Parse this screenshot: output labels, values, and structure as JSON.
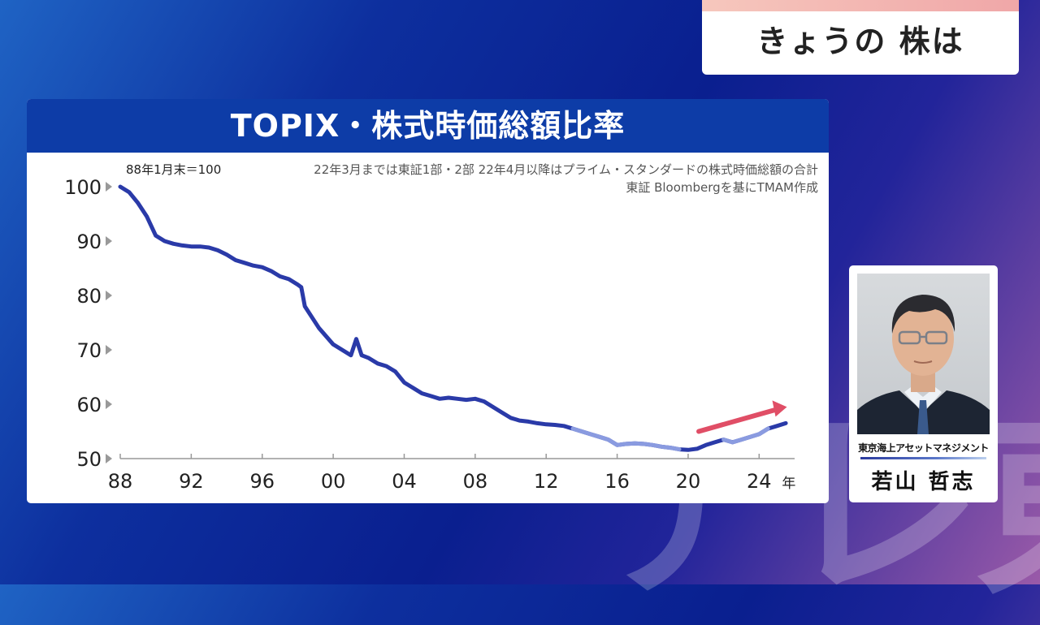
{
  "watermark": {
    "text": "テレ東"
  },
  "topic": {
    "title": "きょうの 株は"
  },
  "guest": {
    "company": "東京海上アセットマネジメント",
    "name": "若山 哲志"
  },
  "chart_data": {
    "type": "line",
    "title": "TOPIX・株式時価総額比率",
    "base_note": "88年1月末＝100",
    "note_line1": "22年3月までは東証1部・2部 22年4月以降はプライム・スタンダードの株式時価総額の合計",
    "note_line2": "東証 Bloombergを基にTMAM作成",
    "x_ticks": [
      "88",
      "92",
      "96",
      "00",
      "04",
      "08",
      "12",
      "16",
      "20",
      "24"
    ],
    "x_unit": "年",
    "y_ticks": [
      100,
      90,
      80,
      70,
      60,
      50
    ],
    "xlim": [
      1988,
      2026
    ],
    "ylim": [
      50,
      100
    ],
    "series_color": "#2a3aa8",
    "highlight_color": "#8a9be0",
    "arrow_color": "#e04e66",
    "highlight_ranges": [
      [
        2013.5,
        2019.5
      ],
      [
        2022.0,
        2024.5
      ]
    ],
    "x": [
      1988.0,
      1988.5,
      1989.0,
      1989.5,
      1990.0,
      1990.5,
      1991.0,
      1991.5,
      1992.0,
      1992.5,
      1993.0,
      1993.5,
      1994.0,
      1994.5,
      1995.0,
      1995.5,
      1996.0,
      1996.5,
      1997.0,
      1997.5,
      1998.0,
      1998.2,
      1998.4,
      1998.8,
      1999.2,
      1999.6,
      2000.0,
      2000.5,
      2001.0,
      2001.3,
      2001.6,
      2002.0,
      2002.5,
      2003.0,
      2003.5,
      2004.0,
      2004.5,
      2005.0,
      2005.5,
      2006.0,
      2006.5,
      2007.0,
      2007.5,
      2008.0,
      2008.5,
      2009.0,
      2009.5,
      2010.0,
      2010.5,
      2011.0,
      2011.5,
      2012.0,
      2012.5,
      2013.0,
      2013.5,
      2014.0,
      2014.5,
      2015.0,
      2015.5,
      2016.0,
      2016.5,
      2017.0,
      2017.5,
      2018.0,
      2018.5,
      2019.0,
      2019.5,
      2020.0,
      2020.5,
      2021.0,
      2021.5,
      2022.0,
      2022.5,
      2023.0,
      2023.5,
      2024.0,
      2024.5,
      2025.0,
      2025.5
    ],
    "y": [
      100.0,
      99.0,
      97.0,
      94.5,
      91.0,
      90.0,
      89.5,
      89.2,
      89.0,
      89.0,
      88.8,
      88.3,
      87.5,
      86.5,
      86.0,
      85.5,
      85.2,
      84.5,
      83.5,
      83.0,
      82.0,
      81.5,
      78.0,
      76.0,
      74.0,
      72.5,
      71.0,
      70.0,
      69.0,
      72.0,
      69.0,
      68.5,
      67.5,
      67.0,
      66.0,
      64.0,
      63.0,
      62.0,
      61.5,
      61.0,
      61.2,
      61.0,
      60.8,
      61.0,
      60.5,
      59.5,
      58.5,
      57.5,
      57.0,
      56.8,
      56.5,
      56.3,
      56.2,
      56.0,
      55.5,
      55.0,
      54.5,
      54.0,
      53.5,
      52.5,
      52.7,
      52.8,
      52.7,
      52.5,
      52.2,
      52.0,
      51.7,
      51.6,
      51.8,
      52.5,
      53.0,
      53.5,
      53.0,
      53.5,
      54.0,
      54.5,
      55.5,
      56.0,
      56.5
    ]
  }
}
